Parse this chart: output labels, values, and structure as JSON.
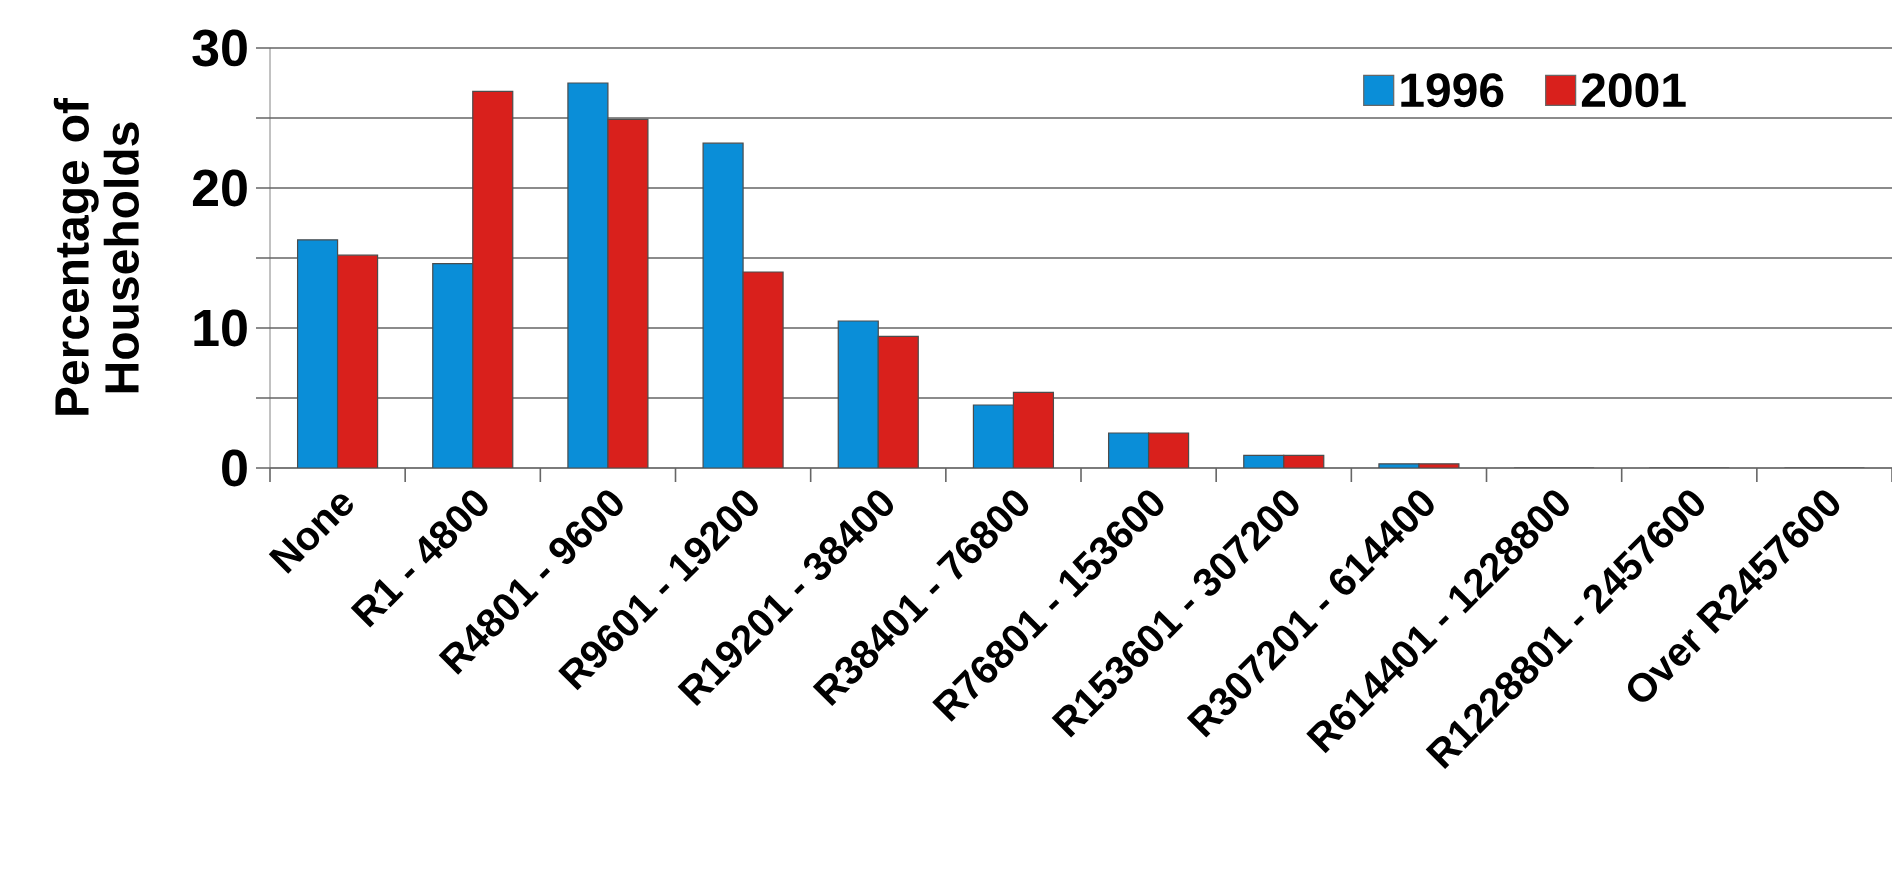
{
  "chart_data": {
    "type": "bar",
    "ylabel": "Percentage of Households",
    "categories": [
      "None",
      "R1 - 4800",
      "R4801 - 9600",
      "R9601 - 19200",
      "R19201 - 38400",
      "R38401 - 76800",
      "R76801 - 153600",
      "R153601 - 307200",
      "R307201 - 614400",
      "R614401 - 1228800",
      "R1228801 - 2457600",
      "Over R2457600"
    ],
    "series": [
      {
        "name": "1996",
        "color": "#0a8ed8",
        "values": [
          16.3,
          14.6,
          27.5,
          23.2,
          10.5,
          4.5,
          2.5,
          0.9,
          0.3,
          0,
          0,
          0
        ]
      },
      {
        "name": "2001",
        "color": "#d9201c",
        "values": [
          15.2,
          26.9,
          24.9,
          14.0,
          9.4,
          5.4,
          2.5,
          0.9,
          0.3,
          0,
          0,
          0
        ]
      }
    ],
    "ylim": [
      0,
      30
    ],
    "yticks": [
      0,
      {
        "value": 5,
        "label": null
      },
      10,
      {
        "value": 15,
        "label": null
      },
      20,
      {
        "value": 25,
        "label": null
      },
      30
    ],
    "grid": "y",
    "legend": "top right"
  }
}
